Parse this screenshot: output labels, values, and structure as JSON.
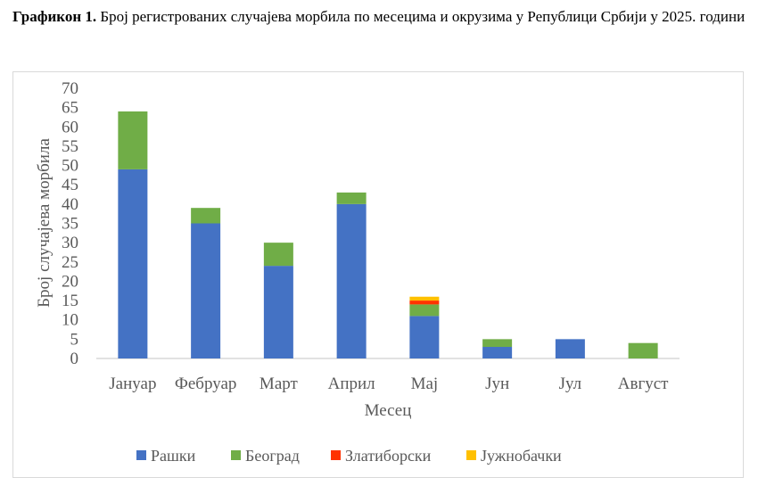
{
  "caption": {
    "label": "Графикон 1.",
    "text": " Број регистрованих случајева морбила по месецима и окрузима у Републици Србији у 2025. години"
  },
  "chart_data": {
    "type": "bar",
    "stacked": true,
    "categories": [
      "Јануар",
      "Фебруар",
      "Март",
      "Април",
      "Мај",
      "Јун",
      "Јул",
      "Август"
    ],
    "series": [
      {
        "name": "Рашки",
        "color": "#4472C4",
        "values": [
          49,
          35,
          24,
          40,
          11,
          3,
          5,
          0
        ]
      },
      {
        "name": "Београд",
        "color": "#70AD47",
        "values": [
          15,
          4,
          6,
          3,
          3,
          2,
          0,
          4
        ]
      },
      {
        "name": "Златиборски",
        "color": "#FF3300",
        "values": [
          0,
          0,
          0,
          0,
          1,
          0,
          0,
          0
        ]
      },
      {
        "name": "Јужнобачки",
        "color": "#FFC000",
        "values": [
          0,
          0,
          0,
          0,
          1,
          0,
          0,
          0
        ]
      }
    ],
    "xlabel": "Месец",
    "ylabel": "Број случајева морбила",
    "ylim": [
      0,
      70
    ],
    "yticks": [
      0,
      5,
      10,
      15,
      20,
      25,
      30,
      35,
      40,
      45,
      50,
      55,
      60,
      65,
      70
    ],
    "grid": false,
    "legend": "bottom"
  }
}
